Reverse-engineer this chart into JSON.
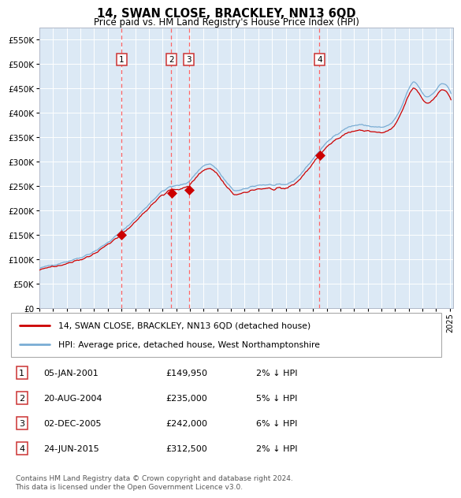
{
  "title": "14, SWAN CLOSE, BRACKLEY, NN13 6QD",
  "subtitle": "Price paid vs. HM Land Registry's House Price Index (HPI)",
  "ylim": [
    0,
    575000
  ],
  "yticks": [
    0,
    50000,
    100000,
    150000,
    200000,
    250000,
    300000,
    350000,
    400000,
    450000,
    500000,
    550000
  ],
  "bg_color": "#dce9f5",
  "grid_color": "#ffffff",
  "legend_label_red": "14, SWAN CLOSE, BRACKLEY, NN13 6QD (detached house)",
  "legend_label_blue": "HPI: Average price, detached house, West Northamptonshire",
  "sale_dates": [
    "2001-01-05",
    "2004-08-20",
    "2005-12-02",
    "2015-06-24"
  ],
  "sale_prices": [
    149950,
    235000,
    242000,
    312500
  ],
  "sale_labels": [
    "1",
    "2",
    "3",
    "4"
  ],
  "table_rows": [
    [
      "1",
      "05-JAN-2001",
      "£149,950",
      "2% ↓ HPI"
    ],
    [
      "2",
      "20-AUG-2004",
      "£235,000",
      "5% ↓ HPI"
    ],
    [
      "3",
      "02-DEC-2005",
      "£242,000",
      "6% ↓ HPI"
    ],
    [
      "4",
      "24-JUN-2015",
      "£312,500",
      "2% ↓ HPI"
    ]
  ],
  "footer": "Contains HM Land Registry data © Crown copyright and database right 2024.\nThis data is licensed under the Open Government Licence v3.0.",
  "red_color": "#cc0000",
  "blue_color": "#7aadd4",
  "dashed_color": "#ff6666",
  "marker_color": "#cc0000"
}
